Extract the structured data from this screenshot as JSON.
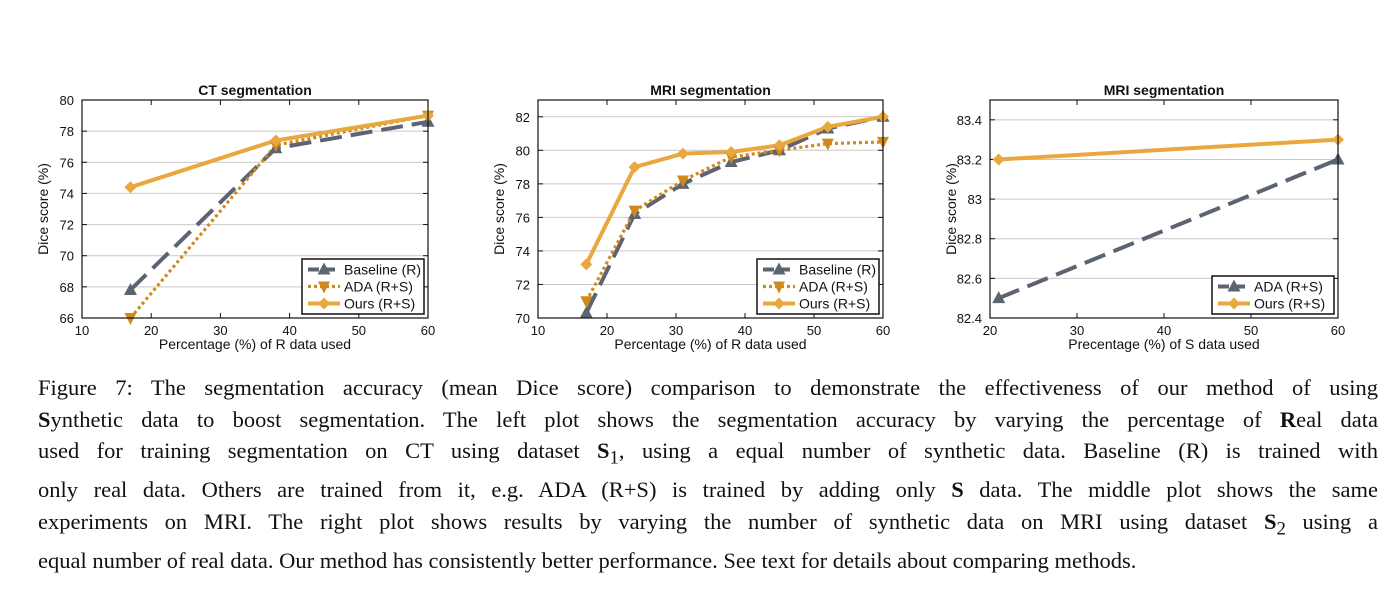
{
  "colors": {
    "baseline": "#5c6472",
    "ada": "#d08a1c",
    "ours": "#e8a83e",
    "grid": "#c9c9c9",
    "frame": "#111111"
  },
  "chart_data": [
    {
      "type": "line",
      "title": "CT segmentation",
      "xlabel": "Percentage (%) of R data used",
      "ylabel": "Dice score (%)",
      "xlim": [
        10,
        60
      ],
      "ylim": [
        66,
        80
      ],
      "xticks": [
        10,
        20,
        30,
        40,
        50,
        60
      ],
      "yticks": [
        66,
        68,
        70,
        72,
        74,
        76,
        78,
        80
      ],
      "grid": "horizontal",
      "legend_position": "bottom-right",
      "series": [
        {
          "name": "Baseline (R)",
          "style": "baseline",
          "x": [
            17,
            38,
            60
          ],
          "y": [
            67.8,
            76.9,
            78.6
          ]
        },
        {
          "name": "ADA (R+S)",
          "style": "ada",
          "x": [
            17,
            38,
            60
          ],
          "y": [
            66.0,
            77.1,
            79.0
          ]
        },
        {
          "name": "Ours (R+S)",
          "style": "ours",
          "x": [
            17,
            38,
            60
          ],
          "y": [
            74.4,
            77.4,
            79.0
          ]
        }
      ]
    },
    {
      "type": "line",
      "title": "MRI segmentation",
      "xlabel": "Percentage (%) of R data used",
      "ylabel": "Dice score (%)",
      "xlim": [
        10,
        60
      ],
      "ylim": [
        70,
        83
      ],
      "xticks": [
        10,
        20,
        30,
        40,
        50,
        60
      ],
      "yticks": [
        70,
        72,
        74,
        76,
        78,
        80,
        82
      ],
      "grid": "horizontal",
      "legend_position": "bottom-right",
      "series": [
        {
          "name": "Baseline (R)",
          "style": "baseline",
          "x": [
            17,
            24,
            31,
            38,
            45,
            52,
            60
          ],
          "y": [
            70.3,
            76.2,
            78.0,
            79.3,
            80.0,
            81.3,
            82.0
          ]
        },
        {
          "name": "ADA (R+S)",
          "style": "ada",
          "x": [
            17,
            24,
            31,
            38,
            45,
            52,
            60
          ],
          "y": [
            71.0,
            76.4,
            78.2,
            79.6,
            80.0,
            80.4,
            80.5
          ]
        },
        {
          "name": "Ours (R+S)",
          "style": "ours",
          "x": [
            17,
            24,
            31,
            38,
            45,
            52,
            60
          ],
          "y": [
            73.2,
            79.0,
            79.8,
            79.9,
            80.3,
            81.4,
            82.0
          ]
        }
      ]
    },
    {
      "type": "line",
      "title": "MRI segmentation",
      "xlabel": "Precentage (%) of S data used",
      "ylabel": "Dice score (%)",
      "xlim": [
        20,
        60
      ],
      "ylim": [
        82.4,
        83.5
      ],
      "xticks": [
        20,
        30,
        40,
        50,
        60
      ],
      "yticks": [
        82.4,
        82.6,
        82.8,
        83,
        83.2,
        83.4
      ],
      "ytick_labels": [
        "82.4",
        "82.6",
        "82.8",
        "83",
        "83.2",
        "83.4"
      ],
      "grid": "horizontal",
      "legend_position": "bottom-right",
      "series": [
        {
          "name": "ADA (R+S)",
          "style": "baseline",
          "x": [
            21,
            60
          ],
          "y": [
            82.5,
            83.2
          ]
        },
        {
          "name": "Ours (R+S)",
          "style": "ours",
          "x": [
            21,
            60
          ],
          "y": [
            83.2,
            83.3
          ]
        }
      ]
    }
  ],
  "caption": {
    "lines": [
      [
        {
          "t": "Figure 7: The segmentation accuracy (mean Dice score) comparison to demonstrate the effectiveness of our method of using"
        }
      ],
      [
        {
          "t": "S",
          "b": true
        },
        {
          "t": "ynthetic data to boost segmentation. The left plot shows the segmentation accuracy by varying the percentage of "
        },
        {
          "t": "R",
          "b": true
        },
        {
          "t": "eal data"
        }
      ],
      [
        {
          "t": "used for training segmentation on CT using dataset "
        },
        {
          "t": "S",
          "b": true
        },
        {
          "t": "1",
          "sub": true
        },
        {
          "t": ", using a equal number of synthetic data. Baseline (R) is trained with"
        }
      ],
      [
        {
          "t": "only real data. Others are trained from it, e.g. ADA (R+S) is trained by adding only "
        },
        {
          "t": "S",
          "b": true
        },
        {
          "t": " data. The middle plot shows the same"
        }
      ],
      [
        {
          "t": "experiments on MRI. The right plot shows results by varying the number of synthetic data on MRI using dataset "
        },
        {
          "t": "S",
          "b": true
        },
        {
          "t": "2",
          "sub": true
        },
        {
          "t": " using a"
        }
      ],
      [
        {
          "t": "equal number of real data. Our method has consistently better performance. See text for details about comparing methods."
        }
      ]
    ]
  }
}
